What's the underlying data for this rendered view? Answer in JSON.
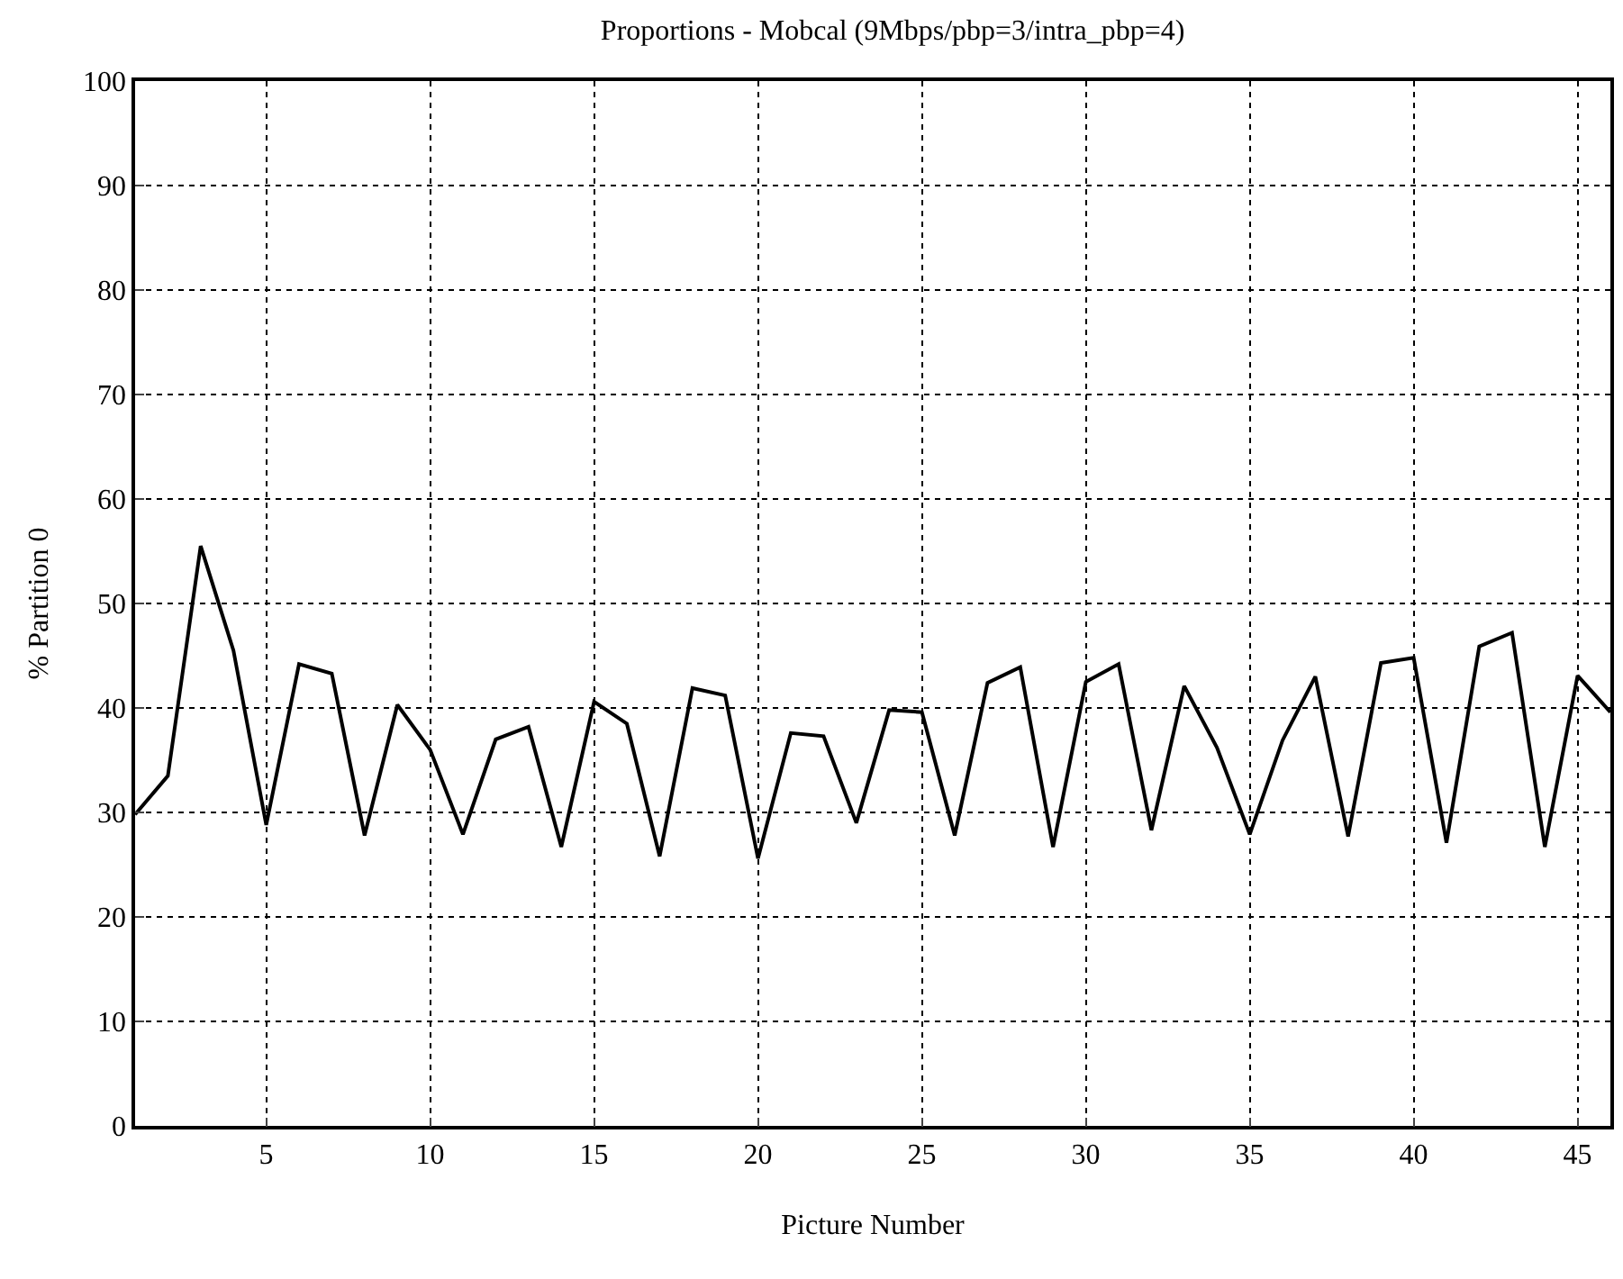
{
  "chart_data": {
    "type": "line",
    "title": "Proportions - Mobcal (9Mbps/pbp=3/intra_pbp=4)",
    "xlabel": "Picture Number",
    "ylabel": "% Partition 0",
    "x": [
      1,
      2,
      3,
      4,
      5,
      6,
      7,
      8,
      9,
      10,
      11,
      12,
      13,
      14,
      15,
      16,
      17,
      18,
      19,
      20,
      21,
      22,
      23,
      24,
      25,
      26,
      27,
      28,
      29,
      30,
      31,
      32,
      33,
      34,
      35,
      36,
      37,
      38,
      39,
      40,
      41,
      42,
      43,
      44,
      45,
      46
    ],
    "series": [
      {
        "color": "#000000",
        "values": [
          29.8,
          33.5,
          55.5,
          45.5,
          28.8,
          44.2,
          43.3,
          27.8,
          40.3,
          36.0,
          27.9,
          37.0,
          38.2,
          26.7,
          40.6,
          38.5,
          25.8,
          41.9,
          41.2,
          25.6,
          37.6,
          37.3,
          29.0,
          39.8,
          39.6,
          27.8,
          42.4,
          43.9,
          26.7,
          42.5,
          44.2,
          28.3,
          42.1,
          36.2,
          27.9,
          36.9,
          43.0,
          27.7,
          44.3,
          44.8,
          27.1,
          45.9,
          47.2,
          26.7,
          43.1,
          39.6
        ]
      }
    ],
    "xlim": [
      1,
      46
    ],
    "xticks": [
      5,
      10,
      15,
      20,
      25,
      30,
      35,
      40,
      45
    ],
    "ylim": [
      0,
      100
    ],
    "yticks": [
      0,
      10,
      20,
      30,
      40,
      50,
      60,
      70,
      80,
      90,
      100
    ],
    "grid": true,
    "line_style": "solid"
  }
}
